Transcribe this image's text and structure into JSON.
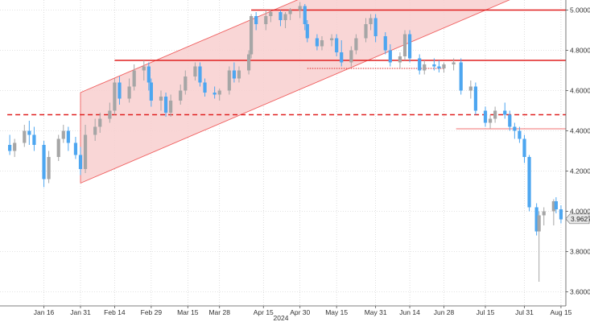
{
  "chart_data": {
    "type": "candlestick",
    "title": "",
    "xlabel": "",
    "ylabel": "",
    "x_tick_labels": [
      "Jan 16",
      "Jan 31",
      "Feb 14",
      "Feb 29",
      "Mar 15",
      "Mar 28",
      "Apr 15",
      "Apr 30",
      "May 15",
      "May 31",
      "Jun 14",
      "Jun 28",
      "Jul 15",
      "Jul 31",
      "Aug 15"
    ],
    "year_label": "2024",
    "y_ticks": [
      3.6,
      3.8,
      4.0,
      4.2,
      4.4,
      4.6,
      4.8,
      5.0
    ],
    "y_tick_labels": [
      "3.6000",
      "3.8000",
      "4.0000",
      "4.2000",
      "4.4000",
      "4.6000",
      "4.8000",
      "5.0000"
    ],
    "ylim": [
      3.53,
      5.05
    ],
    "y_axis_side": "right",
    "grid": "dotted",
    "last_value": 3.9627,
    "last_value_label": "3.9627",
    "up_color": "#a6a6a6",
    "down_color": "#4da6f0",
    "channel": {
      "upper": [
        [
          "Jan 31",
          4.59
        ],
        [
          "Aug 15",
          5.61
        ]
      ],
      "lower": [
        [
          "Jan 31",
          4.14
        ],
        [
          "Aug 15",
          5.16
        ]
      ],
      "fill": "#f8cfcf",
      "stroke": "#f06060"
    },
    "levels": [
      {
        "value": 5.0,
        "from": "Apr 10",
        "style": "solid",
        "color": "#e02020"
      },
      {
        "value": 4.75,
        "from": "Feb 14",
        "style": "solid",
        "color": "#e02020"
      },
      {
        "value": 4.71,
        "from": "May 3",
        "to": "Jun 28",
        "style": "dotted",
        "color": "#e02020"
      },
      {
        "value": 4.48,
        "from": "Jan 1",
        "style": "dashed",
        "color": "#e02020"
      },
      {
        "value": 4.41,
        "from": "Jul 3",
        "style": "thin",
        "color": "#f07070"
      }
    ],
    "ohlc": [
      [
        "Jan 2",
        4.33,
        4.38,
        4.28,
        4.3
      ],
      [
        "Jan 4",
        4.3,
        4.36,
        4.27,
        4.34
      ],
      [
        "Jan 8",
        4.34,
        4.43,
        4.32,
        4.4
      ],
      [
        "Jan 10",
        4.4,
        4.45,
        4.33,
        4.38
      ],
      [
        "Jan 12",
        4.38,
        4.42,
        4.3,
        4.33
      ],
      [
        "Jan 16",
        4.33,
        4.35,
        4.12,
        4.16
      ],
      [
        "Jan 18",
        4.16,
        4.3,
        4.14,
        4.27
      ],
      [
        "Jan 22",
        4.27,
        4.38,
        4.25,
        4.36
      ],
      [
        "Jan 24",
        4.36,
        4.43,
        4.34,
        4.4
      ],
      [
        "Jan 26",
        4.4,
        4.42,
        4.3,
        4.34
      ],
      [
        "Jan 29",
        4.34,
        4.37,
        4.26,
        4.28
      ],
      [
        "Jan 31",
        4.28,
        4.32,
        4.18,
        4.21
      ],
      [
        "Feb 2",
        4.21,
        4.43,
        4.19,
        4.38
      ],
      [
        "Feb 6",
        4.38,
        4.46,
        4.35,
        4.42
      ],
      [
        "Feb 8",
        4.42,
        4.49,
        4.39,
        4.46
      ],
      [
        "Feb 12",
        4.46,
        4.54,
        4.44,
        4.5
      ],
      [
        "Feb 14",
        4.5,
        4.66,
        4.48,
        4.64
      ],
      [
        "Feb 16",
        4.64,
        4.67,
        4.53,
        4.56
      ],
      [
        "Feb 20",
        4.56,
        4.66,
        4.54,
        4.62
      ],
      [
        "Feb 22",
        4.62,
        4.73,
        4.6,
        4.7
      ],
      [
        "Feb 26",
        4.7,
        4.75,
        4.65,
        4.72
      ],
      [
        "Feb 28",
        4.72,
        4.74,
        4.6,
        4.64
      ],
      [
        "Feb 29",
        4.64,
        4.66,
        4.52,
        4.55
      ],
      [
        "Mar 4",
        4.55,
        4.6,
        4.5,
        4.57
      ],
      [
        "Mar 6",
        4.57,
        4.59,
        4.47,
        4.49
      ],
      [
        "Mar 8",
        4.49,
        4.58,
        4.47,
        4.55
      ],
      [
        "Mar 12",
        4.55,
        4.63,
        4.53,
        4.6
      ],
      [
        "Mar 14",
        4.6,
        4.7,
        4.58,
        4.67
      ],
      [
        "Mar 18",
        4.67,
        4.74,
        4.65,
        4.72
      ],
      [
        "Mar 20",
        4.72,
        4.74,
        4.62,
        4.64
      ],
      [
        "Mar 22",
        4.64,
        4.66,
        4.57,
        4.59
      ],
      [
        "Mar 26",
        4.59,
        4.62,
        4.56,
        4.58
      ],
      [
        "Mar 28",
        4.58,
        4.61,
        4.55,
        4.6
      ],
      [
        "Apr 1",
        4.6,
        4.72,
        4.58,
        4.7
      ],
      [
        "Apr 3",
        4.7,
        4.74,
        4.64,
        4.66
      ],
      [
        "Apr 5",
        4.66,
        4.72,
        4.64,
        4.7
      ],
      [
        "Apr 9",
        4.7,
        4.8,
        4.68,
        4.78
      ],
      [
        "Apr 10",
        4.78,
        4.98,
        4.76,
        4.97
      ],
      [
        "Apr 12",
        4.97,
        4.99,
        4.9,
        4.93
      ],
      [
        "Apr 16",
        4.93,
        5.0,
        4.9,
        4.97
      ],
      [
        "Apr 18",
        4.97,
        5.0,
        4.94,
        4.99
      ],
      [
        "Apr 22",
        4.99,
        5.0,
        4.92,
        4.95
      ],
      [
        "Apr 24",
        4.95,
        4.99,
        4.91,
        4.98
      ],
      [
        "Apr 26",
        4.98,
        5.01,
        4.95,
        5.0
      ],
      [
        "Apr 30",
        5.0,
        5.04,
        4.96,
        5.02
      ],
      [
        "May 2",
        5.02,
        5.03,
        4.9,
        4.93
      ],
      [
        "May 3",
        4.93,
        4.95,
        4.84,
        4.86
      ],
      [
        "May 7",
        4.86,
        4.88,
        4.8,
        4.82
      ],
      [
        "May 9",
        4.82,
        4.87,
        4.8,
        4.85
      ],
      [
        "May 13",
        4.85,
        4.88,
        4.82,
        4.86
      ],
      [
        "May 15",
        4.86,
        4.88,
        4.77,
        4.79
      ],
      [
        "May 17",
        4.79,
        4.85,
        4.72,
        4.74
      ],
      [
        "May 21",
        4.74,
        4.82,
        4.72,
        4.8
      ],
      [
        "May 23",
        4.8,
        4.88,
        4.78,
        4.86
      ],
      [
        "May 27",
        4.86,
        4.96,
        4.84,
        4.93
      ],
      [
        "May 29",
        4.93,
        4.98,
        4.9,
        4.96
      ],
      [
        "May 31",
        4.96,
        4.98,
        4.84,
        4.87
      ],
      [
        "Jun 4",
        4.87,
        4.89,
        4.78,
        4.8
      ],
      [
        "Jun 6",
        4.8,
        4.83,
        4.72,
        4.74
      ],
      [
        "Jun 10",
        4.74,
        4.79,
        4.71,
        4.77
      ],
      [
        "Jun 12",
        4.77,
        4.9,
        4.75,
        4.88
      ],
      [
        "Jun 14",
        4.88,
        4.9,
        4.74,
        4.76
      ],
      [
        "Jun 18",
        4.76,
        4.78,
        4.68,
        4.7
      ],
      [
        "Jun 20",
        4.7,
        4.75,
        4.68,
        4.73
      ],
      [
        "Jun 24",
        4.73,
        4.76,
        4.7,
        4.72
      ],
      [
        "Jun 26",
        4.72,
        4.75,
        4.69,
        4.71
      ],
      [
        "Jun 28",
        4.71,
        4.74,
        4.69,
        4.73
      ],
      [
        "Jul 2",
        4.73,
        4.76,
        4.7,
        4.74
      ],
      [
        "Jul 5",
        4.74,
        4.76,
        4.58,
        4.6
      ],
      [
        "Jul 9",
        4.6,
        4.65,
        4.56,
        4.62
      ],
      [
        "Jul 11",
        4.62,
        4.64,
        4.48,
        4.5
      ],
      [
        "Jul 15",
        4.5,
        4.52,
        4.42,
        4.44
      ],
      [
        "Jul 17",
        4.44,
        4.48,
        4.41,
        4.46
      ],
      [
        "Jul 19",
        4.46,
        4.52,
        4.44,
        4.5
      ],
      [
        "Jul 23",
        4.5,
        4.54,
        4.46,
        4.48
      ],
      [
        "Jul 25",
        4.48,
        4.5,
        4.4,
        4.42
      ],
      [
        "Jul 27",
        4.42,
        4.44,
        4.36,
        4.4
      ],
      [
        "Jul 29",
        4.4,
        4.42,
        4.34,
        4.36
      ],
      [
        "Jul 31",
        4.36,
        4.38,
        4.24,
        4.27
      ],
      [
        "Aug 2",
        4.27,
        4.28,
        4.0,
        4.02
      ],
      [
        "Aug 5",
        4.02,
        4.04,
        3.88,
        3.9
      ],
      [
        "Aug 6",
        3.9,
        4.0,
        3.65,
        3.98
      ],
      [
        "Aug 8",
        3.98,
        4.02,
        3.93,
        4.0
      ],
      [
        "Aug 12",
        4.0,
        4.06,
        3.93,
        4.05
      ],
      [
        "Aug 13",
        4.05,
        4.07,
        3.99,
        4.01
      ],
      [
        "Aug 15",
        4.01,
        4.03,
        3.94,
        3.96
      ]
    ]
  }
}
